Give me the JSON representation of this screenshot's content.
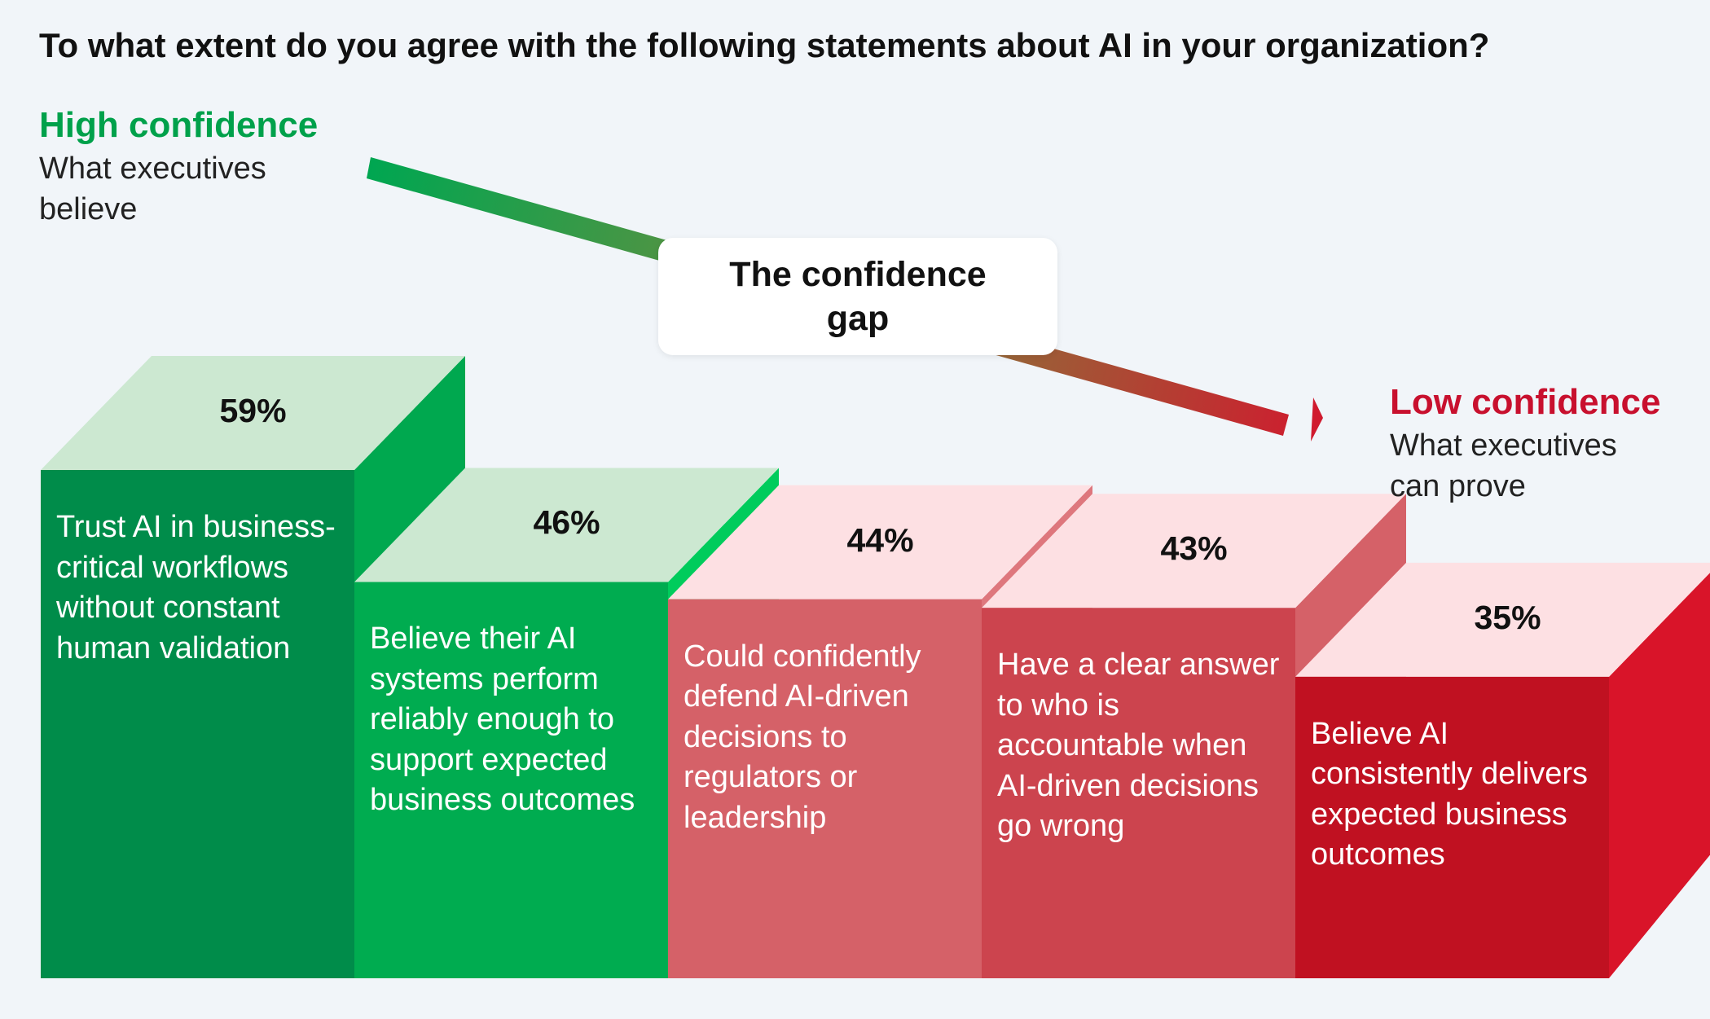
{
  "question": "To what extent do you agree with the following statements about AI in your organization?",
  "high_confidence": {
    "heading": "High confidence",
    "subtitle": "What executives believe",
    "color": "#00a14b"
  },
  "low_confidence": {
    "heading": "Low confidence",
    "subtitle": "What executives can prove",
    "color": "#c8102e"
  },
  "gap_label": "The confidence gap",
  "chart_data": {
    "type": "bar",
    "title": "To what extent do you agree with the following statements about AI in your organization?",
    "xlabel": "",
    "ylabel": "",
    "unit": "%",
    "ylim": [
      0,
      65
    ],
    "grid": false,
    "categories": [
      "Trust AI in business-critical workflows without constant human validation",
      "Believe their AI systems perform reliably enough to support expected business outcomes",
      "Could confidently defend AI-driven decisions to regulators or leadership",
      "Have a clear answer to who is accountable when AI-driven decisions go wrong",
      "Believe AI consistently delivers expected business outcomes"
    ],
    "values": [
      59,
      46,
      44,
      43,
      35
    ],
    "value_labels": [
      "59%",
      "46%",
      "44%",
      "43%",
      "35%"
    ],
    "colors": [
      {
        "front": "#008c4a",
        "side": "#00a84f",
        "top": "#cce8d1"
      },
      {
        "front": "#00ac50",
        "side": "#00cc5c",
        "top": "#cce8d1"
      },
      {
        "front": "#d56168",
        "side": "#de777d",
        "top": "#fde0e3"
      },
      {
        "front": "#cc444e",
        "side": "#d56168",
        "top": "#fde0e3"
      },
      {
        "front": "#c01121",
        "side": "#d91429",
        "top": "#fde0e3"
      }
    ]
  }
}
